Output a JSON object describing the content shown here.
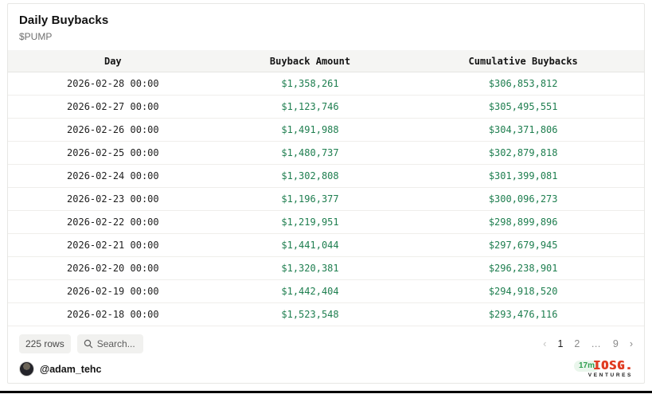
{
  "header": {
    "title": "Daily Buybacks",
    "subtitle": "$PUMP"
  },
  "table": {
    "columns": [
      "Day",
      "Buyback Amount",
      "Cumulative Buybacks"
    ],
    "rows": [
      {
        "day": "2026-02-28 00:00",
        "buyback": "$1,358,261",
        "cumulative": "$306,853,812"
      },
      {
        "day": "2026-02-27 00:00",
        "buyback": "$1,123,746",
        "cumulative": "$305,495,551"
      },
      {
        "day": "2026-02-26 00:00",
        "buyback": "$1,491,988",
        "cumulative": "$304,371,806"
      },
      {
        "day": "2026-02-25 00:00",
        "buyback": "$1,480,737",
        "cumulative": "$302,879,818"
      },
      {
        "day": "2026-02-24 00:00",
        "buyback": "$1,302,808",
        "cumulative": "$301,399,081"
      },
      {
        "day": "2026-02-23 00:00",
        "buyback": "$1,196,377",
        "cumulative": "$300,096,273"
      },
      {
        "day": "2026-02-22 00:00",
        "buyback": "$1,219,951",
        "cumulative": "$298,899,896"
      },
      {
        "day": "2026-02-21 00:00",
        "buyback": "$1,441,044",
        "cumulative": "$297,679,945"
      },
      {
        "day": "2026-02-20 00:00",
        "buyback": "$1,320,381",
        "cumulative": "$296,238,901"
      },
      {
        "day": "2026-02-19 00:00",
        "buyback": "$1,442,404",
        "cumulative": "$294,918,520"
      },
      {
        "day": "2026-02-18 00:00",
        "buyback": "$1,523,548",
        "cumulative": "$293,476,116"
      }
    ],
    "amount_color": "#1e7e4f"
  },
  "footer": {
    "row_count_label": "225 rows",
    "search_placeholder": "Search...",
    "pagination": [
      {
        "label": "‹",
        "state": "disabled",
        "name": "prev-page-button"
      },
      {
        "label": "1",
        "state": "active",
        "name": "page-1-button"
      },
      {
        "label": "2",
        "state": "normal",
        "name": "page-2-button"
      },
      {
        "label": "…",
        "state": "ellipsis",
        "name": "page-ellipsis"
      },
      {
        "label": "9",
        "state": "normal",
        "name": "page-9-button"
      },
      {
        "label": "›",
        "state": "normal",
        "name": "next-page-button"
      }
    ]
  },
  "attribution": {
    "handle": "@adam_tehc",
    "views": "17m",
    "logo_word": "IOSG.",
    "logo_sub": "VENTURES",
    "logo_color": "#e03c22"
  }
}
